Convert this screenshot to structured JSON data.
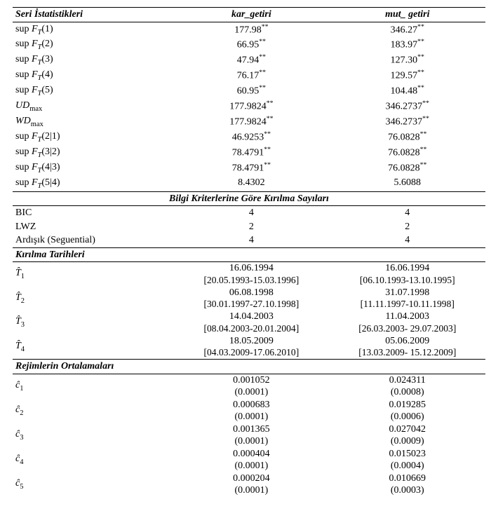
{
  "header": {
    "col1": "Seri İstatistikleri",
    "col2": "kar_getiri",
    "col3": "mut_ getiri"
  },
  "stats": [
    {
      "label_html": "sup <span class='ital'>F<span class='sub'>T</span></span>(1)",
      "v1": "177.98",
      "s1": "**",
      "v2": "346.27",
      "s2": "**"
    },
    {
      "label_html": "sup <span class='ital'>F<span class='sub'>T</span></span>(2)",
      "v1": "66.95",
      "s1": "**",
      "v2": "183.97",
      "s2": "**"
    },
    {
      "label_html": "sup <span class='ital'>F<span class='sub'>T</span></span>(3)",
      "v1": "47.94",
      "s1": "**",
      "v2": "127.30",
      "s2": "**"
    },
    {
      "label_html": "sup <span class='ital'>F<span class='sub'>T</span></span>(4)",
      "v1": "76.17",
      "s1": "**",
      "v2": "129.57",
      "s2": "**"
    },
    {
      "label_html": "sup <span class='ital'>F<span class='sub'>T</span></span>(5)",
      "v1": "60.95",
      "s1": "**",
      "v2": "104.48",
      "s2": "**"
    },
    {
      "label_html": "<span class='ital'>UD</span><span class='sub'>max</span>",
      "v1": "177.9824",
      "s1": "**",
      "v2": "346.2737",
      "s2": "**"
    },
    {
      "label_html": "<span class='ital'>WD</span><span class='sub'>max</span>",
      "v1": "177.9824",
      "s1": "**",
      "v2": "346.2737",
      "s2": "**"
    },
    {
      "label_html": "sup <span class='ital'>F<span class='sub'>T</span></span>(2|1)",
      "v1": "46.9253",
      "s1": "**",
      "v2": "76.0828",
      "s2": "**"
    },
    {
      "label_html": "sup <span class='ital'>F<span class='sub'>T</span></span>(3|2)",
      "v1": "78.4791",
      "s1": "**",
      "v2": "76.0828",
      "s2": "**"
    },
    {
      "label_html": "sup <span class='ital'>F<span class='sub'>T</span></span>(4|3)",
      "v1": "78.4791",
      "s1": "**",
      "v2": "76.0828",
      "s2": "**"
    },
    {
      "label_html": "sup <span class='ital'>F<span class='sub'>T</span></span>(5|4)",
      "v1": "8.4302",
      "s1": "",
      "v2": "5.6088",
      "s2": ""
    }
  ],
  "section_breakcounts": "Bilgi Kriterlerine Göre  Kırılma Sayıları",
  "breakcounts": [
    {
      "label": "BIC",
      "v1": "4",
      "v2": "4"
    },
    {
      "label": "LWZ",
      "v1": "2",
      "v2": "2"
    },
    {
      "label": "Ardışık (Seguential)",
      "v1": "4",
      "v2": "4"
    }
  ],
  "section_dates": "Kırılma Tarihleri",
  "dates": [
    {
      "label_html": "<span class='ital'>T̂</span><span class='sub'>1</span>",
      "d1": "16.06.1994",
      "b1": "[20.05.1993-15.03.1996]",
      "d2": "16.06.1994",
      "b2": "[06.10.1993-13.10.1995]"
    },
    {
      "label_html": "<span class='ital'>T̂</span><span class='sub'>2</span>",
      "d1": "06.08.1998",
      "b1": "[30.01.1997-27.10.1998]",
      "d2": "31.07.1998",
      "b2": "[11.11.1997-10.11.1998]"
    },
    {
      "label_html": "<span class='ital'>T̂</span><span class='sub'>3</span>",
      "d1": "14.04.2003",
      "b1": "[08.04.2003-20.01.2004]",
      "d2": "11.04.2003",
      "b2": "[26.03.2003- 29.07.2003]"
    },
    {
      "label_html": "<span class='ital'>T̂</span><span class='sub'>4</span>",
      "d1": "18.05.2009",
      "b1": "[04.03.2009-17.06.2010]",
      "d2": "05.06.2009",
      "b2": "[13.03.2009- 15.12.2009]"
    }
  ],
  "section_means": "Rejimlerin Ortalamaları",
  "means": [
    {
      "label_html": "<span class='ital'>ĉ</span><span class='sub'>1</span>",
      "m1": "0.001052",
      "p1": "(0.0001)",
      "m2": "0.024311",
      "p2": "(0.0008)"
    },
    {
      "label_html": "<span class='ital'>ĉ</span><span class='sub'>2</span>",
      "m1": "0.000683",
      "p1": "(0.0001)",
      "m2": "0.019285",
      "p2": "(0.0006)"
    },
    {
      "label_html": "<span class='ital'>ĉ</span><span class='sub'>3</span>",
      "m1": "0.001365",
      "p1": "(0.0001)",
      "m2": "0.027042",
      "p2": "(0.0009)"
    },
    {
      "label_html": "<span class='ital'>ĉ</span><span class='sub'>4</span>",
      "m1": "0.000404",
      "p1": "(0.0001)",
      "m2": "0.015023",
      "p2": "(0.0004)"
    },
    {
      "label_html": "<span class='ital'>ĉ</span><span class='sub'>5</span>",
      "m1": "0.000204",
      "p1": "(0.0001)",
      "m2": "0.010669",
      "p2": "(0.0003)"
    }
  ]
}
